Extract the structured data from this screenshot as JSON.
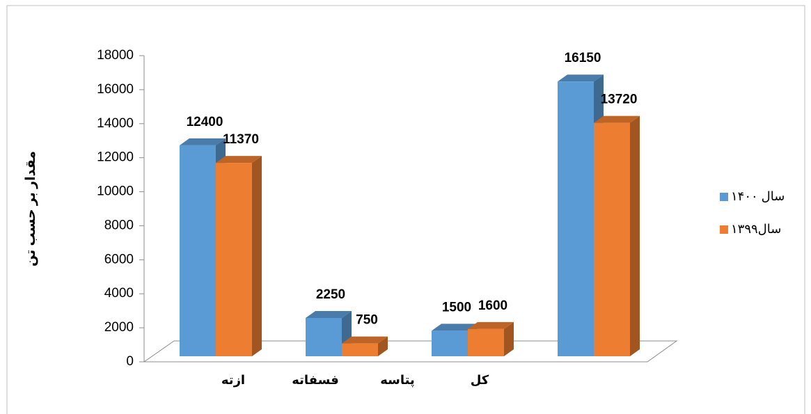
{
  "chart_data": {
    "type": "bar3d",
    "y_label": "مقدار بر حسب تن",
    "categories": [
      "ازته",
      "فسفاته",
      "پتاسه",
      "کل"
    ],
    "series": [
      {
        "name": "سال ۱۴۰۰",
        "color": "#5b9bd5",
        "values": [
          12400,
          2250,
          1500,
          16150
        ]
      },
      {
        "name": "سال۱۳۹۹",
        "color": "#ed7d31",
        "values": [
          11370,
          750,
          1600,
          13720
        ]
      }
    ],
    "ylim": [
      0,
      18000
    ],
    "yticks": [
      0,
      2000,
      4000,
      6000,
      8000,
      10000,
      12000,
      14000,
      16000,
      18000
    ],
    "grid": false,
    "legend": "right"
  }
}
